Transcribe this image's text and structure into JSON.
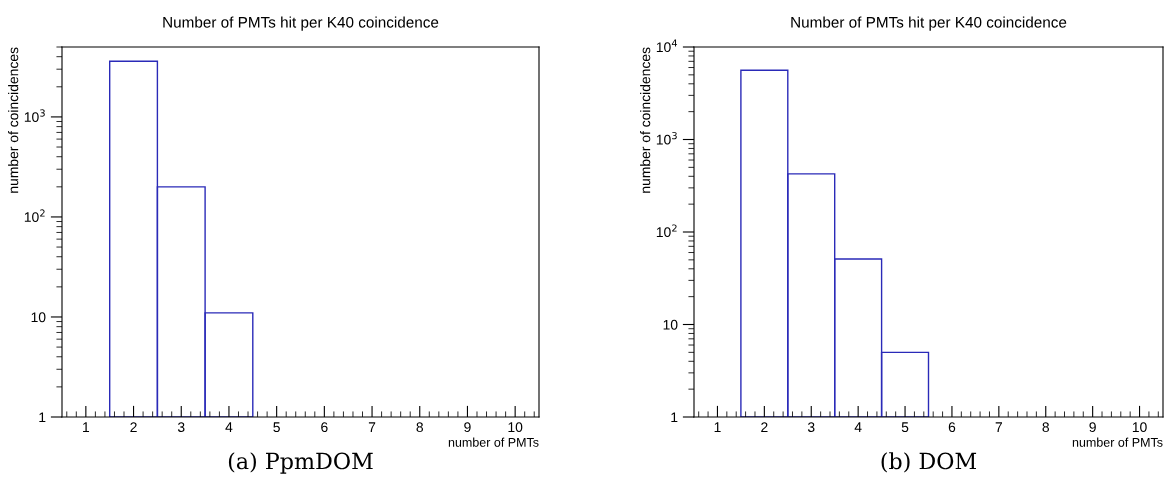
{
  "chart_data": [
    {
      "type": "histogram",
      "title": "Number of PMTs hit per K40 coincidence",
      "xlabel": "number of PMTs",
      "ylabel": "number of coincidences",
      "bins": [
        1.5,
        2.5,
        3.5,
        4.5
      ],
      "values": [
        3600,
        200,
        11
      ],
      "color": "#2a2ab8",
      "log": "y",
      "xlim": [
        0.5,
        10.5
      ],
      "xticks": [
        1,
        2,
        3,
        4,
        5,
        6,
        7,
        8,
        9,
        10
      ],
      "ylim": [
        1,
        5000
      ],
      "yticks": [
        1,
        10,
        {
          "value": 100,
          "label": "10$^{2}$"
        },
        {
          "value": 1000,
          "label": "10$^{3}$"
        }
      ],
      "grid": false,
      "legend": false,
      "annotations": [
        "(a) PpmDOM"
      ]
    },
    {
      "type": "histogram",
      "title": "Number of PMTs hit per K40 coincidence",
      "xlabel": "number of PMTs",
      "ylabel": "number of coincidences",
      "bins": [
        1.5,
        2.5,
        3.5,
        4.5,
        5.5
      ],
      "values": [
        5600,
        425,
        51,
        5
      ],
      "color": "#2a2ab8",
      "log": "y",
      "xlim": [
        0.5,
        10.5
      ],
      "xticks": [
        1,
        2,
        3,
        4,
        5,
        6,
        7,
        8,
        9,
        10
      ],
      "ylim": [
        1,
        10000
      ],
      "yticks": [
        1,
        10,
        {
          "value": 100,
          "label": "10$^{2}$"
        },
        {
          "value": 1000,
          "label": "10$^{3}$"
        },
        {
          "value": 10000,
          "label": "10$^{4}$"
        }
      ],
      "grid": false,
      "legend": false,
      "annotations": [
        "(b) DOM"
      ]
    }
  ]
}
